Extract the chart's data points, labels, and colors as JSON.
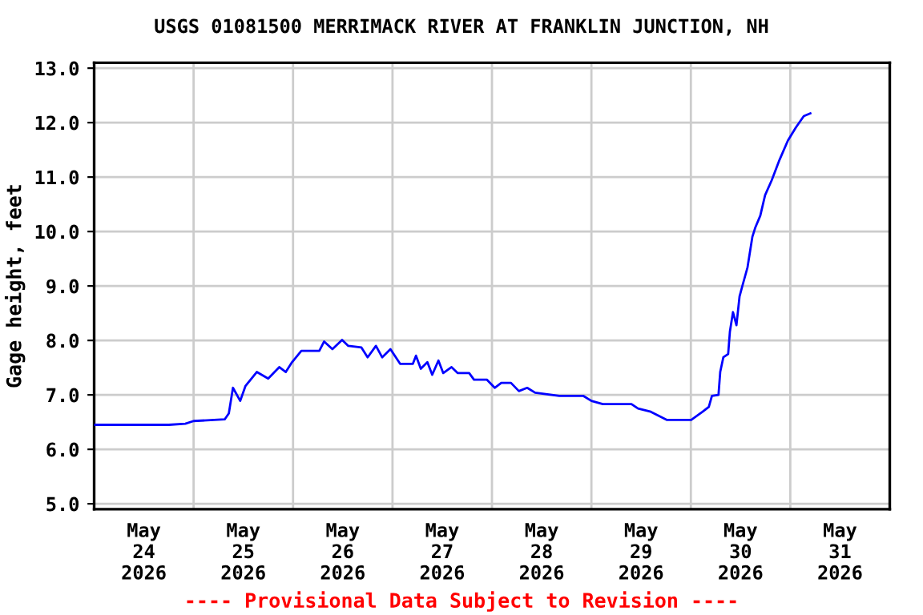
{
  "chart_data": {
    "type": "line",
    "title": "USGS 01081500 MERRIMACK RIVER AT FRANKLIN JUNCTION, NH",
    "ylabel": "Gage height, feet",
    "annotations": [
      "---- Provisional Data Subject to Revision ----"
    ],
    "xlim": [
      "2026-05-24T00:00",
      "2026-06-01T00:00"
    ],
    "xticks": [
      {
        "value": "2026-05-24T00:00",
        "label": null
      },
      {
        "value": "2026-05-24T12:00",
        "label": "May\n24\n2026"
      },
      {
        "value": "2026-05-25T00:00",
        "label": null
      },
      {
        "value": "2026-05-25T12:00",
        "label": "May\n25\n2026"
      },
      {
        "value": "2026-05-26T00:00",
        "label": null
      },
      {
        "value": "2026-05-26T12:00",
        "label": "May\n26\n2026"
      },
      {
        "value": "2026-05-27T00:00",
        "label": null
      },
      {
        "value": "2026-05-27T12:00",
        "label": "May\n27\n2026"
      },
      {
        "value": "2026-05-28T00:00",
        "label": null
      },
      {
        "value": "2026-05-28T12:00",
        "label": "May\n28\n2026"
      },
      {
        "value": "2026-05-29T00:00",
        "label": null
      },
      {
        "value": "2026-05-29T12:00",
        "label": "May\n29\n2026"
      },
      {
        "value": "2026-05-30T00:00",
        "label": null
      },
      {
        "value": "2026-05-30T12:00",
        "label": "May\n30\n2026"
      },
      {
        "value": "2026-05-31T00:00",
        "label": null
      },
      {
        "value": "2026-05-31T12:00",
        "label": "May\n31\n2026"
      },
      {
        "value": "2026-06-01T00:00",
        "label": null
      }
    ],
    "ylim": [
      4.9,
      13.1
    ],
    "yticks": [
      {
        "value": 5,
        "label": "5.0"
      },
      {
        "value": 6,
        "label": "6.0"
      },
      {
        "value": 7,
        "label": "7.0"
      },
      {
        "value": 8,
        "label": "8.0"
      },
      {
        "value": 9,
        "label": "9.0"
      },
      {
        "value": 10,
        "label": "10.0"
      },
      {
        "value": 11,
        "label": "11.0"
      },
      {
        "value": 12,
        "label": "12.0"
      },
      {
        "value": 13,
        "label": "13.0"
      }
    ],
    "grid": true,
    "legend": false,
    "marker": "none",
    "line_style": "solid",
    "series": [
      {
        "color": "#0000ff",
        "x": [
          "2026-05-24T00:00",
          "2026-05-24T18:00",
          "2026-05-24T22:00",
          "2026-05-25T00:00",
          "2026-05-25T07:30",
          "2026-05-25T08:30",
          "2026-05-25T09:30",
          "2026-05-25T11:15",
          "2026-05-25T12:30",
          "2026-05-25T15:15",
          "2026-05-25T18:00",
          "2026-05-25T20:40",
          "2026-05-25T22:15",
          "2026-05-25T23:45",
          "2026-05-26T02:00",
          "2026-05-26T06:20",
          "2026-05-26T07:30",
          "2026-05-26T09:30",
          "2026-05-26T11:50",
          "2026-05-26T13:20",
          "2026-05-26T16:30",
          "2026-05-26T18:00",
          "2026-05-26T20:00",
          "2026-05-26T21:30",
          "2026-05-26T23:30",
          "2026-05-27T01:50",
          "2026-05-27T04:55",
          "2026-05-27T05:40",
          "2026-05-27T06:50",
          "2026-05-27T08:25",
          "2026-05-27T09:35",
          "2026-05-27T11:05",
          "2026-05-27T12:15",
          "2026-05-27T14:15",
          "2026-05-27T15:45",
          "2026-05-27T18:30",
          "2026-05-27T19:40",
          "2026-05-27T22:45",
          "2026-05-28T00:40",
          "2026-05-28T02:15",
          "2026-05-28T04:35",
          "2026-05-28T06:30",
          "2026-05-28T08:30",
          "2026-05-28T10:25",
          "2026-05-28T16:15",
          "2026-05-28T22:05",
          "2026-05-29T00:00",
          "2026-05-29T02:45",
          "2026-05-29T09:40",
          "2026-05-29T11:15",
          "2026-05-29T14:20",
          "2026-05-29T18:15",
          "2026-05-30T00:05",
          "2026-05-30T02:50",
          "2026-05-30T04:20",
          "2026-05-30T05:05",
          "2026-05-30T06:40",
          "2026-05-30T07:05",
          "2026-05-30T07:50",
          "2026-05-30T09:00",
          "2026-05-30T09:25",
          "2026-05-30T10:10",
          "2026-05-30T11:00",
          "2026-05-30T11:45",
          "2026-05-30T12:30",
          "2026-05-30T13:40",
          "2026-05-30T14:50",
          "2026-05-30T15:35",
          "2026-05-30T16:45",
          "2026-05-30T17:55",
          "2026-05-30T19:30",
          "2026-05-30T21:25",
          "2026-05-30T23:25",
          "2026-05-31T01:20",
          "2026-05-31T03:15",
          "2026-05-31T04:50"
        ],
        "values": [
          6.45,
          6.45,
          6.47,
          6.52,
          6.55,
          6.66,
          7.13,
          6.89,
          7.16,
          7.42,
          7.3,
          7.51,
          7.42,
          7.6,
          7.81,
          7.81,
          7.98,
          7.84,
          8.01,
          7.9,
          7.87,
          7.69,
          7.9,
          7.69,
          7.84,
          7.57,
          7.57,
          7.72,
          7.48,
          7.6,
          7.37,
          7.63,
          7.4,
          7.51,
          7.4,
          7.4,
          7.28,
          7.28,
          7.13,
          7.22,
          7.22,
          7.07,
          7.13,
          7.04,
          6.98,
          6.98,
          6.89,
          6.83,
          6.83,
          6.75,
          6.69,
          6.54,
          6.54,
          6.69,
          6.78,
          6.98,
          7.0,
          7.42,
          7.69,
          7.75,
          8.16,
          8.52,
          8.28,
          8.81,
          9.02,
          9.34,
          9.9,
          10.08,
          10.29,
          10.67,
          10.94,
          11.32,
          11.67,
          11.91,
          12.12,
          12.17
        ]
      }
    ]
  }
}
